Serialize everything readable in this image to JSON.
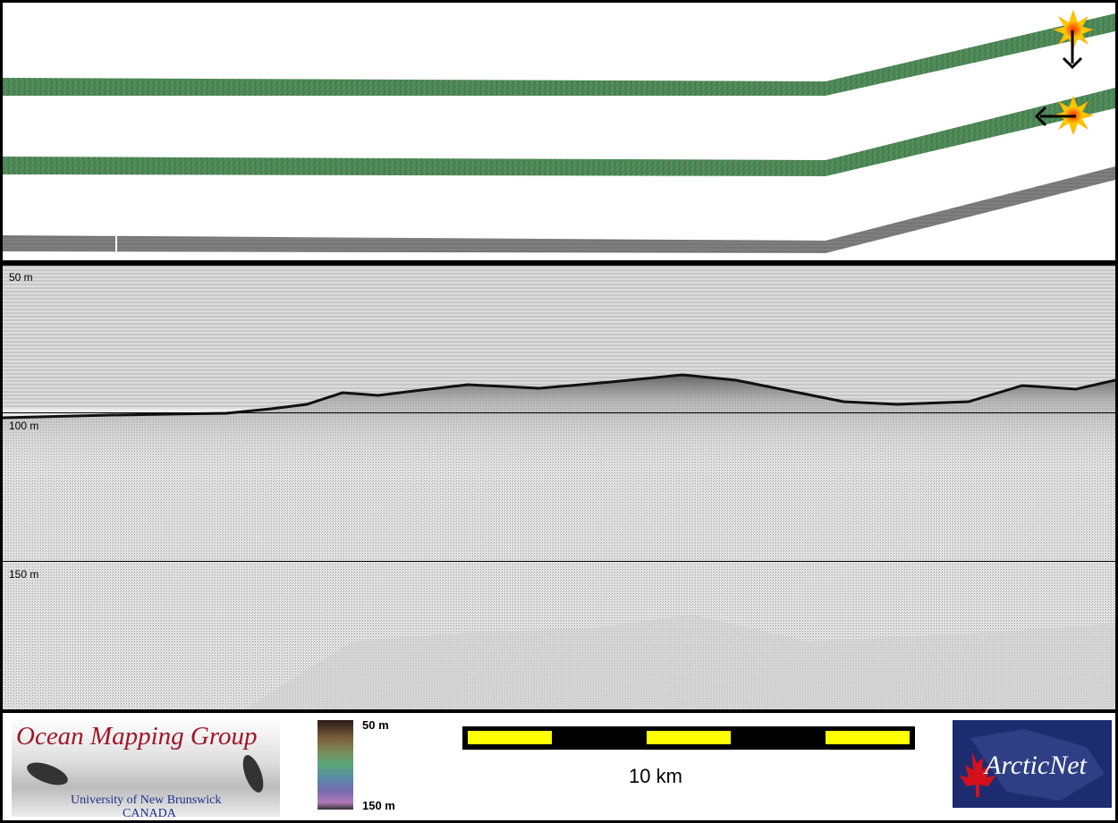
{
  "profile": {
    "depth_labels": [
      "50 m",
      "100 m",
      "150 m"
    ]
  },
  "legend": {
    "colorbar_top": "50 m",
    "colorbar_bottom": "150 m",
    "scale_label": "10 km"
  },
  "logos": {
    "ocean_mapping_title": "Ocean Mapping Group",
    "unb_line": "University of New Brunswick",
    "canada_line": "CANADA",
    "arcticnet": "ArcticNet"
  },
  "colors": {
    "swath_green": "#4e8b5e",
    "swath_gray": "#8a8a8a",
    "scale_yellow": "#ffff00",
    "omg_red": "#a0162a",
    "arctic_blue": "#1d2c6e"
  }
}
